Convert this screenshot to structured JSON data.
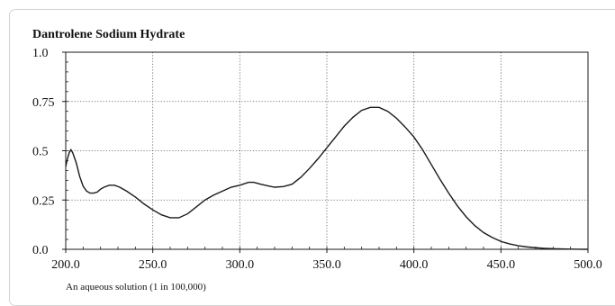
{
  "chart_data": {
    "type": "line",
    "title": "Dantrolene Sodium Hydrate",
    "caption": "An aqueous solution (1 in 100,000)",
    "xlabel": "",
    "ylabel": "",
    "xlim": [
      200,
      500
    ],
    "ylim": [
      0,
      1
    ],
    "x_ticks": [
      200,
      250,
      300,
      350,
      400,
      450,
      500
    ],
    "x_tick_labels": [
      "200.0",
      "250.0",
      "300.0",
      "350.0",
      "400.0",
      "450.0",
      "500.0"
    ],
    "y_ticks": [
      0,
      0.25,
      0.5,
      0.75,
      1.0
    ],
    "y_tick_labels": [
      "0.0",
      "0.25",
      "0.5",
      "0.75",
      "1.0"
    ],
    "grid": "dotted",
    "line_color": "#1a1a1a",
    "series": [
      {
        "x": [
          200,
          201,
          202,
          203,
          204,
          206,
          208,
          210,
          212,
          214,
          216,
          218,
          220,
          222,
          225,
          228,
          231,
          235,
          240,
          245,
          250,
          255,
          260,
          265,
          270,
          275,
          280,
          285,
          290,
          295,
          300,
          305,
          308,
          312,
          316,
          320,
          325,
          330,
          335,
          340,
          345,
          350,
          355,
          360,
          365,
          370,
          375,
          380,
          385,
          390,
          395,
          400,
          405,
          410,
          415,
          420,
          425,
          430,
          435,
          440,
          445,
          450,
          455,
          460,
          465,
          470,
          475,
          480,
          485,
          490,
          495,
          500
        ],
        "y": [
          0.42,
          0.46,
          0.49,
          0.505,
          0.49,
          0.44,
          0.37,
          0.32,
          0.295,
          0.285,
          0.285,
          0.29,
          0.305,
          0.315,
          0.325,
          0.325,
          0.315,
          0.295,
          0.265,
          0.23,
          0.2,
          0.175,
          0.16,
          0.16,
          0.18,
          0.215,
          0.25,
          0.275,
          0.295,
          0.315,
          0.325,
          0.34,
          0.34,
          0.33,
          0.322,
          0.315,
          0.318,
          0.33,
          0.365,
          0.41,
          0.46,
          0.515,
          0.57,
          0.625,
          0.67,
          0.705,
          0.72,
          0.72,
          0.7,
          0.665,
          0.62,
          0.57,
          0.505,
          0.43,
          0.355,
          0.285,
          0.22,
          0.165,
          0.12,
          0.085,
          0.06,
          0.04,
          0.027,
          0.018,
          0.012,
          0.008,
          0.005,
          0.003,
          0.002,
          0.001,
          0.0005,
          0.0
        ]
      }
    ]
  }
}
